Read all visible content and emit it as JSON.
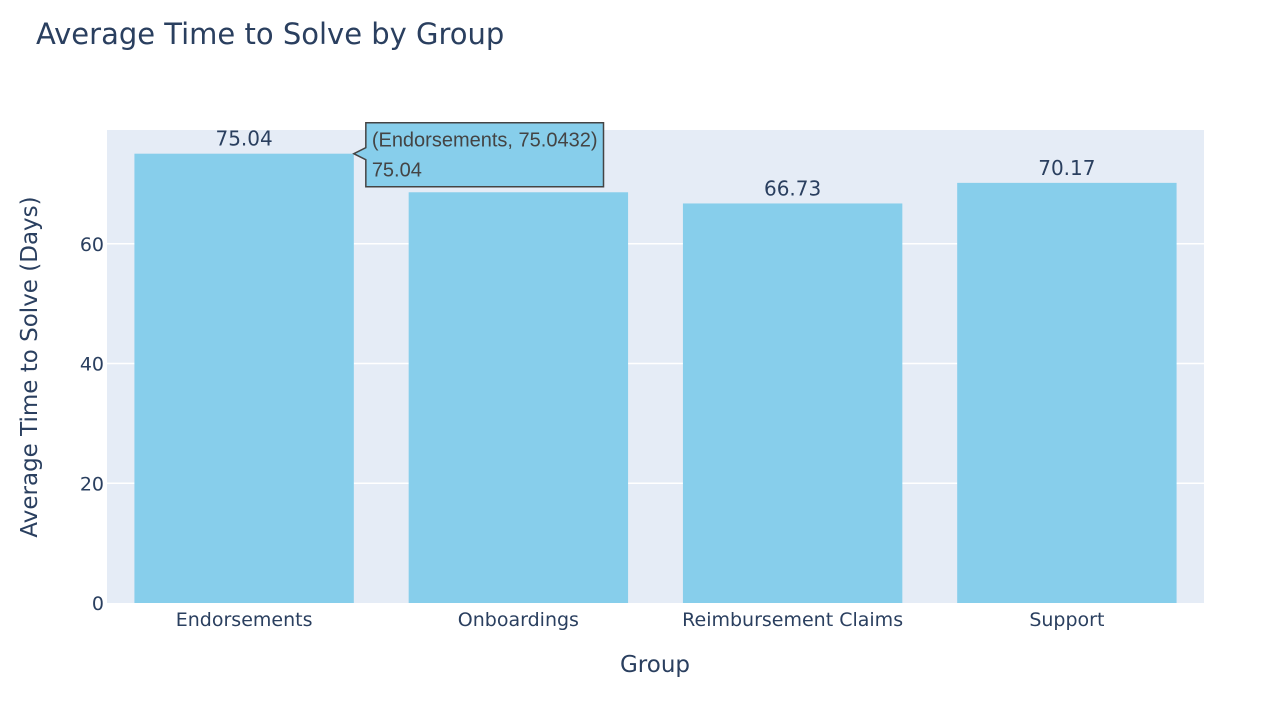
{
  "chart_data": {
    "type": "bar",
    "title": "Average Time to Solve by Group",
    "xlabel": "Group",
    "ylabel": "Average Time to Solve (Days)",
    "categories": [
      "Endorsements",
      "Onboardings",
      "Reimbursement Claims",
      "Support"
    ],
    "values": [
      75.0432,
      68.6,
      66.73,
      70.17
    ],
    "data_labels": [
      "75.04",
      "",
      "66.73",
      "70.17"
    ],
    "ylim": [
      0,
      79
    ],
    "yticks": [
      0,
      20,
      40,
      60
    ],
    "grid": true,
    "bar_color": "#87ceeb",
    "plot_bg": "#e5ecf6",
    "text_color": "#2a3f5f",
    "hover": {
      "category_index": 0,
      "line1": "(Endorsements, 75.0432)",
      "line2": "75.04"
    }
  }
}
